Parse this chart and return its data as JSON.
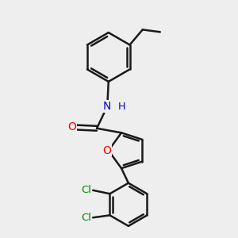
{
  "background_color": "#eeeeee",
  "bond_color": "#1a1a1a",
  "atom_colors": {
    "O": "#ff0000",
    "N": "#0000cc",
    "Cl": "#008800",
    "H": "#0000cc"
  },
  "bond_width": 1.8,
  "font_size_atom": 10
}
